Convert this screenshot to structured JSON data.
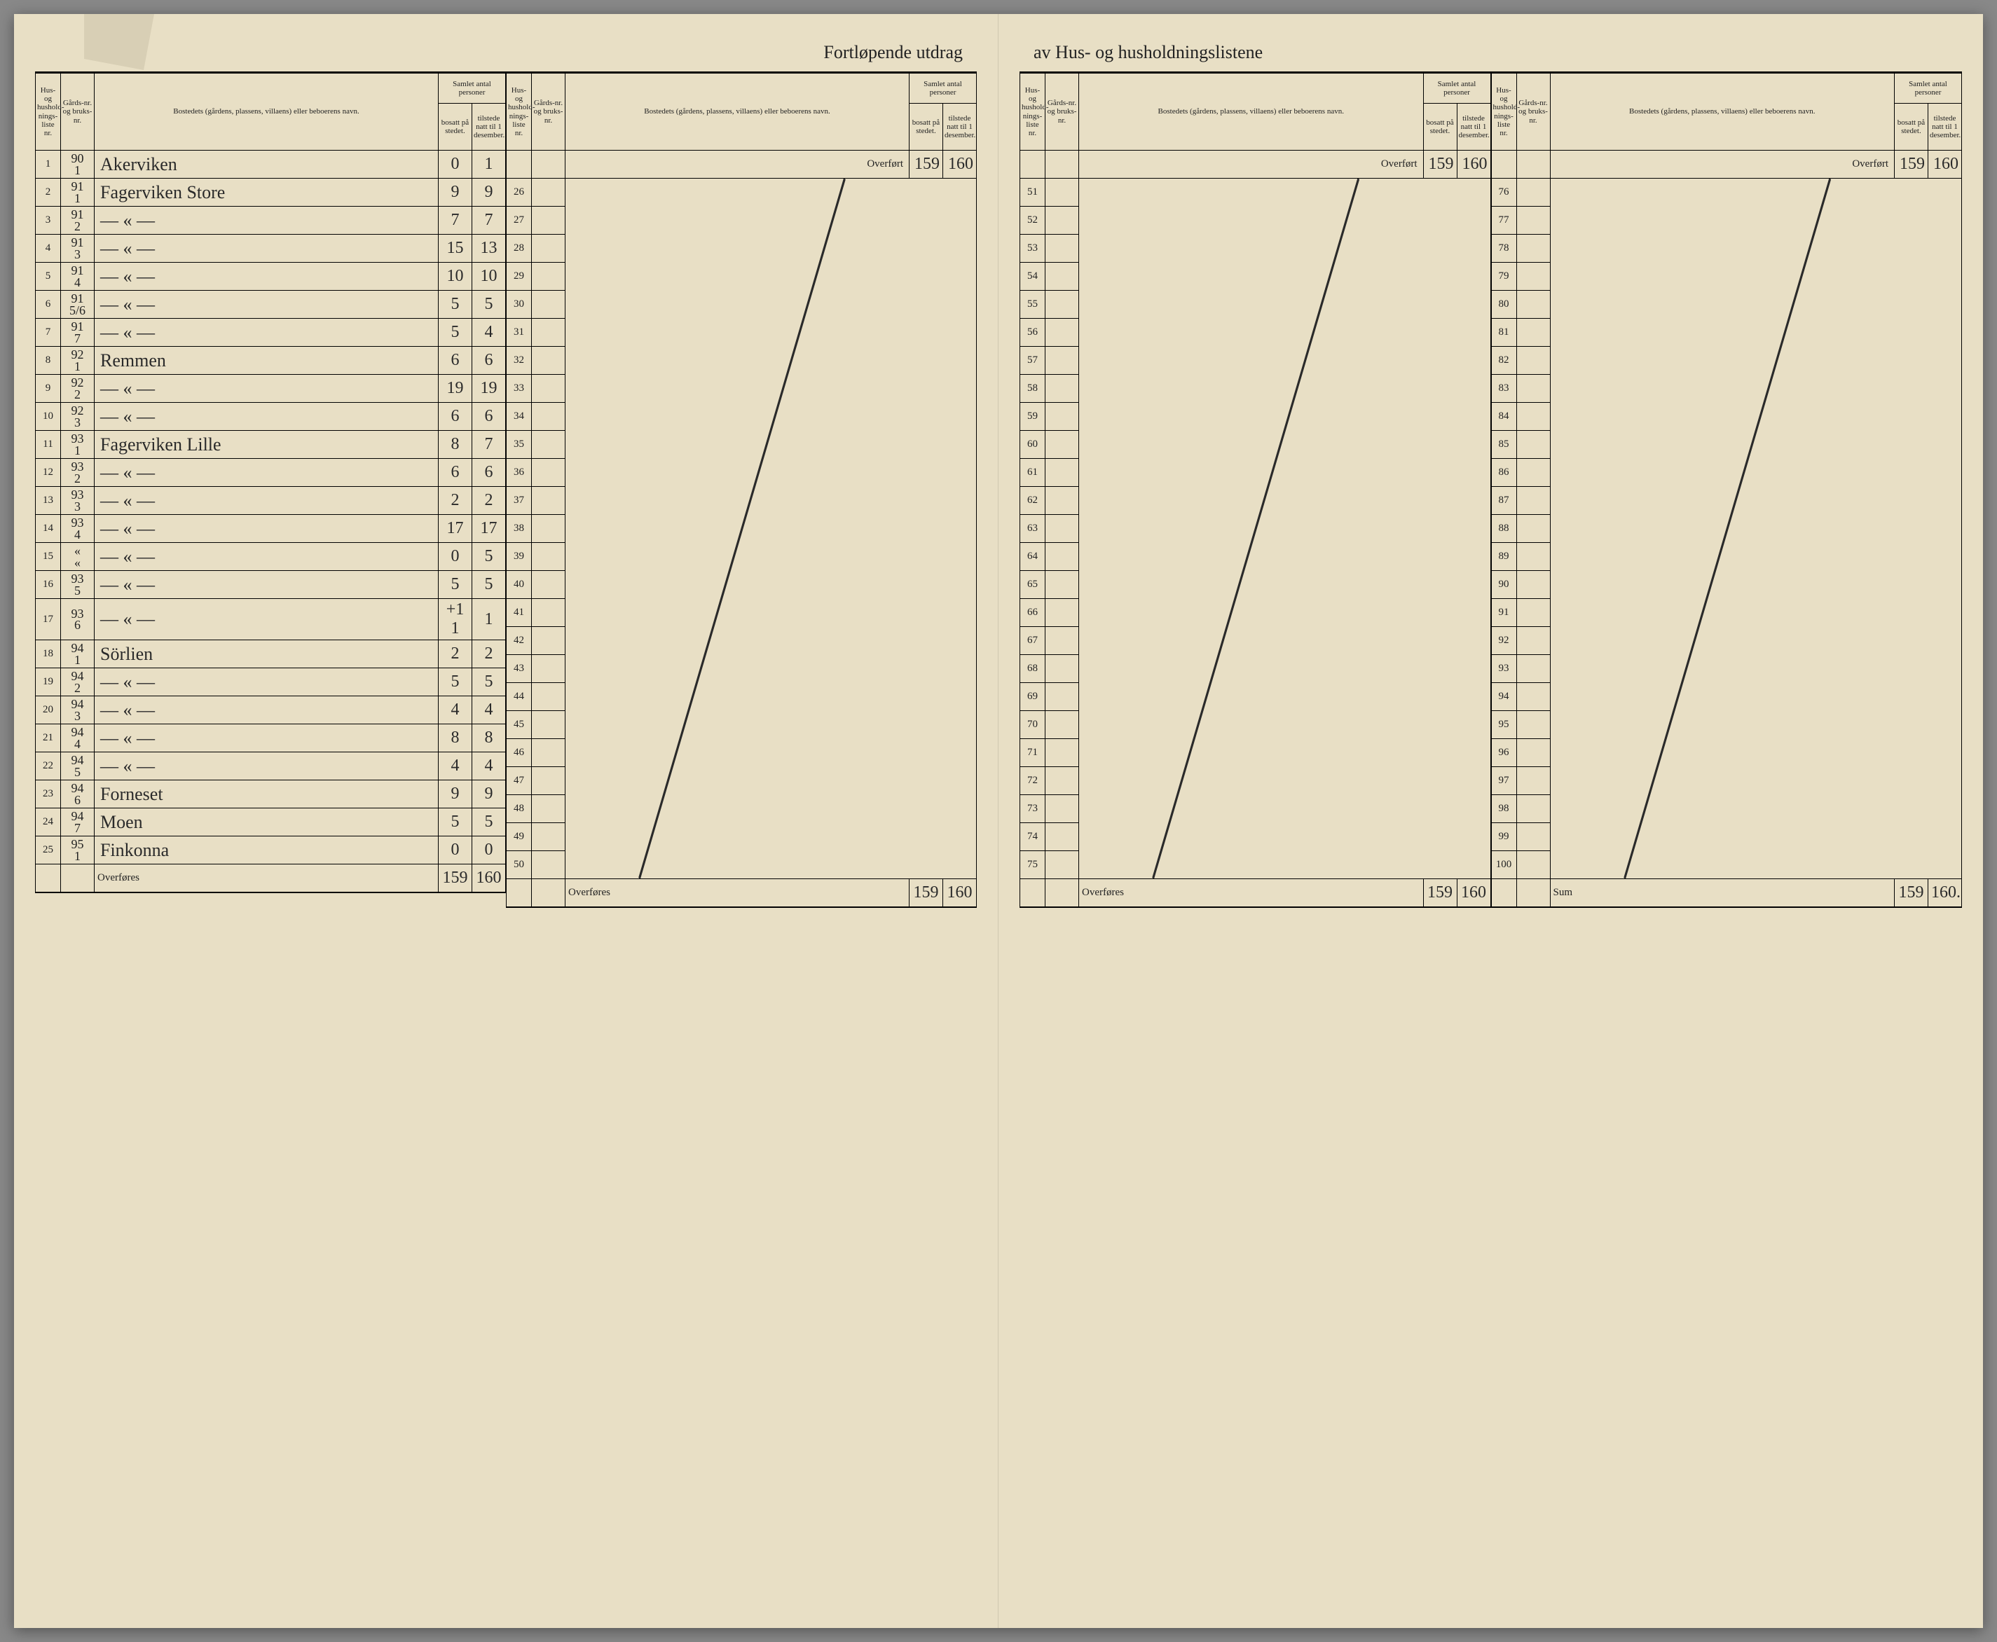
{
  "titleLeft": "Fortløpende utdrag",
  "titleRight": "av Hus- og husholdningslistene",
  "headers": {
    "col1": "Hus- og hushold-nings-liste nr.",
    "col2": "Gårds-nr. og bruks-nr.",
    "col3": "Bostedets (gårdens, plassens, villaens) eller beboerens navn.",
    "groupSamlet": "Samlet antal personer",
    "col4": "bosatt på stedet.",
    "col5": "tilstede natt til 1 desember."
  },
  "overfortLabel": "Overført",
  "overforesLabel": "Overføres",
  "sumLabel": "Sum",
  "panel1": {
    "rows": [
      {
        "idx": "1",
        "gnr": "90\n1",
        "name": "Akerviken",
        "bosatt": "0",
        "tilstede": "1"
      },
      {
        "idx": "2",
        "gnr": "91\n1",
        "name": "Fagerviken Store",
        "bosatt": "9",
        "tilstede": "9"
      },
      {
        "idx": "3",
        "gnr": "91\n2",
        "name": "— « —",
        "bosatt": "7",
        "tilstede": "7"
      },
      {
        "idx": "4",
        "gnr": "91\n3",
        "name": "— « —",
        "bosatt": "15",
        "tilstede": "13"
      },
      {
        "idx": "5",
        "gnr": "91\n4",
        "name": "— « —",
        "bosatt": "10",
        "tilstede": "10"
      },
      {
        "idx": "6",
        "gnr": "91\n5/6",
        "name": "— « —",
        "bosatt": "5",
        "tilstede": "5"
      },
      {
        "idx": "7",
        "gnr": "91\n7",
        "name": "— « —",
        "bosatt": "5",
        "tilstede": "4"
      },
      {
        "idx": "8",
        "gnr": "92\n1",
        "name": "Remmen",
        "bosatt": "6",
        "tilstede": "6"
      },
      {
        "idx": "9",
        "gnr": "92\n2",
        "name": "— « —",
        "bosatt": "19",
        "tilstede": "19"
      },
      {
        "idx": "10",
        "gnr": "92\n3",
        "name": "— « —",
        "bosatt": "6",
        "tilstede": "6"
      },
      {
        "idx": "11",
        "gnr": "93\n1",
        "name": "Fagerviken Lille",
        "bosatt": "8",
        "tilstede": "7"
      },
      {
        "idx": "12",
        "gnr": "93\n2",
        "name": "— « —",
        "bosatt": "6",
        "tilstede": "6"
      },
      {
        "idx": "13",
        "gnr": "93\n3",
        "name": "— « —",
        "bosatt": "2",
        "tilstede": "2"
      },
      {
        "idx": "14",
        "gnr": "93\n4",
        "name": "— « —",
        "bosatt": "17",
        "tilstede": "17"
      },
      {
        "idx": "15",
        "gnr": "«\n«",
        "name": "— « —",
        "bosatt": "0",
        "tilstede": "5"
      },
      {
        "idx": "16",
        "gnr": "93\n5",
        "name": "— « —",
        "bosatt": "5",
        "tilstede": "5"
      },
      {
        "idx": "17",
        "gnr": "93\n6",
        "name": "— « —",
        "bosatt": "+1\n1",
        "tilstede": "1"
      },
      {
        "idx": "18",
        "gnr": "94\n1",
        "name": "Sörlien",
        "bosatt": "2",
        "tilstede": "2"
      },
      {
        "idx": "19",
        "gnr": "94\n2",
        "name": "— « —",
        "bosatt": "5",
        "tilstede": "5"
      },
      {
        "idx": "20",
        "gnr": "94\n3",
        "name": "— « —",
        "bosatt": "4",
        "tilstede": "4"
      },
      {
        "idx": "21",
        "gnr": "94\n4",
        "name": "— « —",
        "bosatt": "8",
        "tilstede": "8"
      },
      {
        "idx": "22",
        "gnr": "94\n5",
        "name": "— « —",
        "bosatt": "4",
        "tilstede": "4"
      },
      {
        "idx": "23",
        "gnr": "94\n6",
        "name": "Forneset",
        "bosatt": "9",
        "tilstede": "9"
      },
      {
        "idx": "24",
        "gnr": "94\n7",
        "name": "Moen",
        "bosatt": "5",
        "tilstede": "5"
      },
      {
        "idx": "25",
        "gnr": "95\n1",
        "name": "Finkonna",
        "bosatt": "0",
        "tilstede": "0"
      }
    ],
    "overforesBosatt": "159",
    "overforesTilstede": "160"
  },
  "panel2": {
    "startIdx": 26,
    "endIdx": 50,
    "overfortBosatt": "159",
    "overfortTilstede": "160",
    "overforesBosatt": "159",
    "overforesTilstede": "160"
  },
  "panel3": {
    "startIdx": 51,
    "endIdx": 75,
    "overfortBosatt": "159",
    "overfortTilstede": "160",
    "overforesBosatt": "159",
    "overforesTilstede": "160"
  },
  "panel4": {
    "startIdx": 76,
    "endIdx": 100,
    "overfortBosatt": "159",
    "overfortTilstede": "160",
    "sumBosatt": "159",
    "sumTilstede": "160."
  },
  "colors": {
    "paper": "#e8dfc5",
    "ink": "#222222",
    "handwriting": "#2a2a2a"
  }
}
